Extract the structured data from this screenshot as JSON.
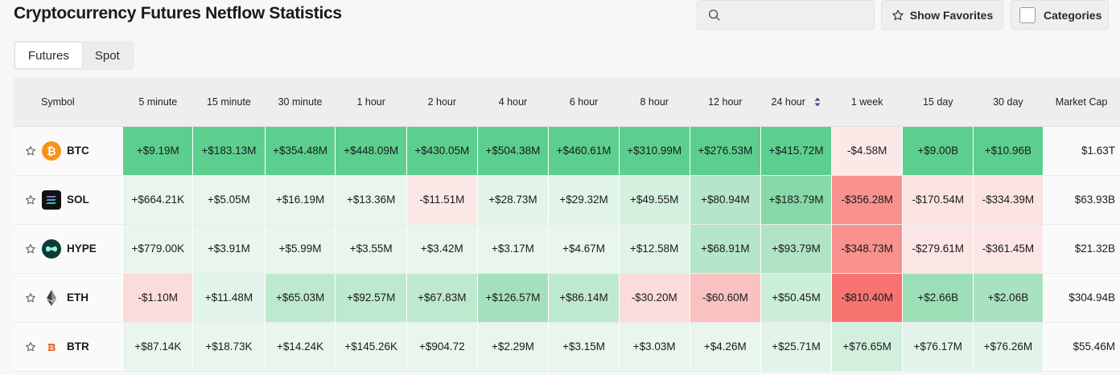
{
  "title": "Cryptocurrency Futures Netflow Statistics",
  "search": {
    "placeholder": "",
    "value": "",
    "icon": "search-icon"
  },
  "buttons": {
    "favorites": "Show Favorites",
    "categories": "Categories"
  },
  "tabs": [
    {
      "label": "Futures",
      "active": true
    },
    {
      "label": "Spot",
      "active": false
    }
  ],
  "table": {
    "headers": [
      "Symbol",
      "5 minute",
      "15 minute",
      "30 minute",
      "1 hour",
      "2 hour",
      "4 hour",
      "6 hour",
      "8 hour",
      "12 hour",
      "24 hour",
      "1 week",
      "15 day",
      "30 day",
      "Market Cap"
    ],
    "sorted_column": "24 hour",
    "rows": [
      {
        "symbol": "BTC",
        "icon": "btc-icon",
        "values": [
          "+$9.19M",
          "+$183.13M",
          "+$354.48M",
          "+$448.09M",
          "+$430.05M",
          "+$504.38M",
          "+$460.61M",
          "+$310.99M",
          "+$276.53M",
          "+$415.72M",
          "-$4.58M",
          "+$9.00B",
          "+$10.96B"
        ],
        "market_cap": "$1.63T"
      },
      {
        "symbol": "SOL",
        "icon": "sol-icon",
        "values": [
          "+$664.21K",
          "+$5.05M",
          "+$16.19M",
          "+$13.36M",
          "-$11.51M",
          "+$28.73M",
          "+$29.32M",
          "+$49.55M",
          "+$80.94M",
          "+$183.79M",
          "-$356.28M",
          "-$170.54M",
          "-$334.39M"
        ],
        "market_cap": "$63.93B"
      },
      {
        "symbol": "HYPE",
        "icon": "hype-icon",
        "values": [
          "+$779.00K",
          "+$3.91M",
          "+$5.99M",
          "+$3.55M",
          "+$3.42M",
          "+$3.17M",
          "+$4.67M",
          "+$12.58M",
          "+$68.91M",
          "+$93.79M",
          "-$348.73M",
          "-$279.61M",
          "-$361.45M"
        ],
        "market_cap": "$21.32B"
      },
      {
        "symbol": "ETH",
        "icon": "eth-icon",
        "values": [
          "-$1.10M",
          "+$11.48M",
          "+$65.03M",
          "+$92.57M",
          "+$67.83M",
          "+$126.57M",
          "+$86.14M",
          "-$30.20M",
          "-$60.60M",
          "+$50.45M",
          "-$810.40M",
          "+$2.66B",
          "+$2.06B"
        ],
        "market_cap": "$304.94B"
      },
      {
        "symbol": "BTR",
        "icon": "btr-icon",
        "values": [
          "+$87.14K",
          "+$18.73K",
          "+$14.24K",
          "+$145.26K",
          "+$904.72",
          "+$2.29M",
          "+$3.15M",
          "+$3.03M",
          "+$4.26M",
          "+$25.71M",
          "+$76.65M",
          "+$76.17M",
          "+$76.26M"
        ],
        "market_cap": "$55.46M"
      }
    ],
    "cell_colors": [
      [
        "#5ccf8e",
        "#5ccf8e",
        "#5ccf8e",
        "#5ccf8e",
        "#5ccf8e",
        "#5ccf8e",
        "#5ccf8e",
        "#5ccf8e",
        "#5ccf8e",
        "#5ccf8e",
        "#fbe9e8",
        "#5ccf8e",
        "#5ccf8e"
      ],
      [
        "#e9f6ee",
        "#e9f6ee",
        "#e9f6ee",
        "#e9f6ee",
        "#fbe9e8",
        "#e2f4e9",
        "#e2f4e9",
        "#d5f0df",
        "#b6e6c9",
        "#86d9a8",
        "#f9918e",
        "#fbe3e2",
        "#fbe3e2"
      ],
      [
        "#e9f6ee",
        "#e9f6ee",
        "#e9f6ee",
        "#e9f6ee",
        "#e9f6ee",
        "#e9f6ee",
        "#e9f6ee",
        "#e2f4e9",
        "#b6e6c9",
        "#b0e4c5",
        "#f9918e",
        "#fbe6e5",
        "#fbe6e5"
      ],
      [
        "#fbdcdb",
        "#e2f4e9",
        "#bfe9cf",
        "#bfe9cf",
        "#bfe9cf",
        "#a5e0bc",
        "#bfe9cf",
        "#fbdcdb",
        "#f9c2c0",
        "#cbeed9",
        "#f77470",
        "#9cdfb7",
        "#a9e2c0"
      ],
      [
        "#e9f6ee",
        "#e9f6ee",
        "#e9f6ee",
        "#e9f6ee",
        "#e9f6ee",
        "#e9f6ee",
        "#e9f6ee",
        "#e9f6ee",
        "#e9f6ee",
        "#e2f4e9",
        "#d2f0dd",
        "#e2f4e9",
        "#e2f4e9"
      ]
    ]
  },
  "colors": {
    "btc": "#f7931a",
    "sol_bg": "#111111",
    "hype": "#0f3b35",
    "eth": "#3c3c3d",
    "btr": "#f26b21"
  }
}
